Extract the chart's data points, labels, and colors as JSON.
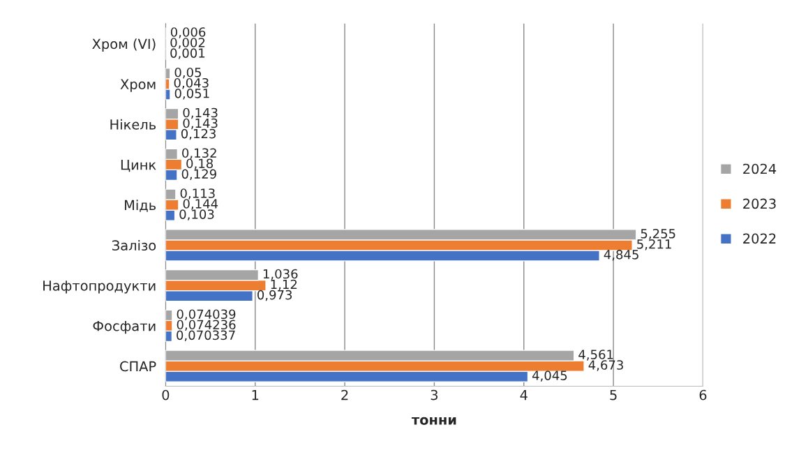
{
  "chart_data": {
    "type": "bar",
    "orientation": "horizontal",
    "xlabel": "тонни",
    "categories": [
      "Хром (VI)",
      "Хром",
      "Нікель",
      "Цинк",
      "Мідь",
      "Залізо",
      "Нафтопродукти",
      "Фосфати",
      "СПАР"
    ],
    "series": [
      {
        "name": "2022",
        "color": "#4472c4",
        "values": [
          0.001,
          0.051,
          0.123,
          0.129,
          0.103,
          4.845,
          0.973,
          0.070337,
          4.045
        ],
        "value_labels": [
          "0,001",
          "0,051",
          "0,123",
          "0,129",
          "0,103",
          "4,845",
          "0,973",
          "0,070337",
          "4,045"
        ]
      },
      {
        "name": "2023",
        "color": "#ed7d31",
        "values": [
          0.002,
          0.043,
          0.143,
          0.18,
          0.144,
          5.211,
          1.12,
          0.074236,
          4.673
        ],
        "value_labels": [
          "0,002",
          "0,043",
          "0,143",
          "0,18",
          "0,144",
          "5,211",
          "1,12",
          "0,074236",
          "4,673"
        ]
      },
      {
        "name": "2024",
        "color": "#a5a5a5",
        "values": [
          0.006,
          0.05,
          0.143,
          0.132,
          0.113,
          5.255,
          1.036,
          0.074039,
          4.561
        ],
        "value_labels": [
          "0,006",
          "0,05",
          "0,143",
          "0,132",
          "0,113",
          "5,255",
          "1,036",
          "0,074039",
          "4,561"
        ]
      }
    ],
    "xlim": [
      0,
      6
    ],
    "xticks": [
      0,
      1,
      2,
      3,
      4,
      5,
      6
    ],
    "grid": "x",
    "legend": "right"
  }
}
